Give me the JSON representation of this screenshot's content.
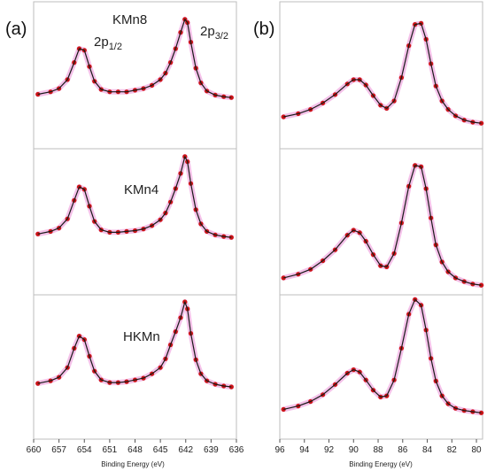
{
  "panels": {
    "a": {
      "tag": "(a)"
    },
    "b": {
      "tag": "(b)"
    }
  },
  "peak_labels": {
    "p12": "2p",
    "p12_sub": "1/2",
    "p32": "2p",
    "p32_sub": "3/2"
  },
  "colors": {
    "points": "#cc1515",
    "halo": "#f0a6df",
    "fit": "#1a1a1a",
    "frame": "#bdbdbd"
  },
  "chart_data": [
    {
      "type": "line",
      "panel": "(a)",
      "xlabel": "Binding Energy (eV)",
      "ylabel": "",
      "xlim": [
        660,
        636
      ],
      "x_reversed": true,
      "xticks": [
        660,
        657,
        654,
        651,
        648,
        645,
        642,
        639,
        636
      ],
      "stacked": true,
      "y_units": "arbitrary (no y axis shown)",
      "annotations": [
        "2p1/2",
        "2p3/2"
      ],
      "series": [
        {
          "name": "KMn8",
          "x": [
            659.5,
            658,
            657,
            656,
            655.2,
            654.6,
            654.0,
            653.4,
            652.8,
            652,
            651,
            650,
            649,
            648,
            647,
            646,
            645,
            644.4,
            643.8,
            643.2,
            642.6,
            642.1,
            641.8,
            641.4,
            640.8,
            640.2,
            639.5,
            638.5,
            637.5,
            636.6
          ],
          "y": [
            0.06,
            0.09,
            0.13,
            0.24,
            0.45,
            0.62,
            0.6,
            0.4,
            0.22,
            0.12,
            0.09,
            0.09,
            0.09,
            0.11,
            0.13,
            0.17,
            0.24,
            0.32,
            0.45,
            0.62,
            0.82,
            0.98,
            0.94,
            0.7,
            0.38,
            0.2,
            0.1,
            0.05,
            0.03,
            0.02
          ]
        },
        {
          "name": "KMn4",
          "x": [
            659.5,
            658,
            657,
            656,
            655.2,
            654.6,
            654.0,
            653.4,
            652.8,
            652,
            651,
            650,
            649,
            648,
            647,
            646,
            645,
            644.4,
            643.8,
            643.2,
            642.6,
            642.1,
            641.8,
            641.4,
            640.8,
            640.2,
            639.5,
            638.5,
            637.5,
            636.6
          ],
          "y": [
            0.06,
            0.09,
            0.13,
            0.24,
            0.46,
            0.62,
            0.59,
            0.39,
            0.21,
            0.11,
            0.08,
            0.08,
            0.09,
            0.1,
            0.12,
            0.16,
            0.23,
            0.31,
            0.44,
            0.6,
            0.78,
            0.98,
            0.92,
            0.66,
            0.35,
            0.18,
            0.09,
            0.05,
            0.03,
            0.02
          ]
        },
        {
          "name": "HKMn",
          "x": [
            659.5,
            658,
            657,
            656,
            655.2,
            654.6,
            654.0,
            653.4,
            652.8,
            652,
            651,
            650,
            649,
            648,
            647,
            646,
            645,
            644.4,
            643.8,
            643.2,
            642.6,
            642.1,
            641.8,
            641.4,
            640.8,
            640.2,
            639.5,
            638.5,
            637.5,
            636.6
          ],
          "y": [
            0.05,
            0.08,
            0.12,
            0.23,
            0.45,
            0.59,
            0.55,
            0.36,
            0.19,
            0.09,
            0.06,
            0.06,
            0.07,
            0.09,
            0.11,
            0.16,
            0.23,
            0.33,
            0.49,
            0.64,
            0.8,
            0.98,
            0.9,
            0.62,
            0.32,
            0.16,
            0.08,
            0.04,
            0.02,
            0.01
          ]
        }
      ]
    },
    {
      "type": "line",
      "panel": "(b)",
      "xlabel": "Binding Energy (eV)",
      "ylabel": "",
      "xlim": [
        96,
        79.5
      ],
      "x_reversed": true,
      "xticks": [
        96,
        94,
        92,
        90,
        88,
        86,
        84,
        82,
        80
      ],
      "stacked": true,
      "y_units": "arbitrary (no y axis shown)",
      "series": [
        {
          "x": [
            95.7,
            94.5,
            93.5,
            92.5,
            91.5,
            90.5,
            90.0,
            89.5,
            89.0,
            88.4,
            87.8,
            87.3,
            86.7,
            86.1,
            85.5,
            85.0,
            84.5,
            84.1,
            83.7,
            83.3,
            82.8,
            82.3,
            81.7,
            81.0,
            80.3,
            79.6
          ],
          "y": [
            0.05,
            0.08,
            0.12,
            0.18,
            0.26,
            0.36,
            0.4,
            0.4,
            0.35,
            0.25,
            0.16,
            0.13,
            0.2,
            0.42,
            0.72,
            0.92,
            0.93,
            0.78,
            0.55,
            0.34,
            0.2,
            0.12,
            0.06,
            0.02,
            0.0,
            -0.01
          ]
        },
        {
          "x": [
            95.7,
            94.5,
            93.5,
            92.5,
            91.5,
            90.5,
            90.0,
            89.5,
            89.0,
            88.4,
            87.8,
            87.3,
            86.7,
            86.1,
            85.5,
            85.0,
            84.5,
            84.1,
            83.7,
            83.3,
            82.8,
            82.3,
            81.7,
            81.0,
            80.3,
            79.6
          ],
          "y": [
            0.03,
            0.06,
            0.1,
            0.17,
            0.26,
            0.38,
            0.42,
            0.4,
            0.33,
            0.22,
            0.13,
            0.12,
            0.23,
            0.48,
            0.78,
            0.95,
            0.94,
            0.76,
            0.52,
            0.3,
            0.16,
            0.08,
            0.03,
            0.0,
            -0.02,
            -0.03
          ]
        },
        {
          "x": [
            95.7,
            94.5,
            93.5,
            92.5,
            91.5,
            90.5,
            90.0,
            89.5,
            89.0,
            88.4,
            87.8,
            87.3,
            86.7,
            86.1,
            85.5,
            85.0,
            84.5,
            84.1,
            83.7,
            83.3,
            82.8,
            82.3,
            81.7,
            81.0,
            80.3,
            79.6
          ],
          "y": [
            0.02,
            0.05,
            0.09,
            0.15,
            0.24,
            0.34,
            0.37,
            0.35,
            0.28,
            0.19,
            0.13,
            0.14,
            0.28,
            0.56,
            0.86,
            0.99,
            0.94,
            0.72,
            0.47,
            0.27,
            0.14,
            0.07,
            0.03,
            0.01,
            0.0,
            -0.01
          ]
        }
      ]
    }
  ]
}
